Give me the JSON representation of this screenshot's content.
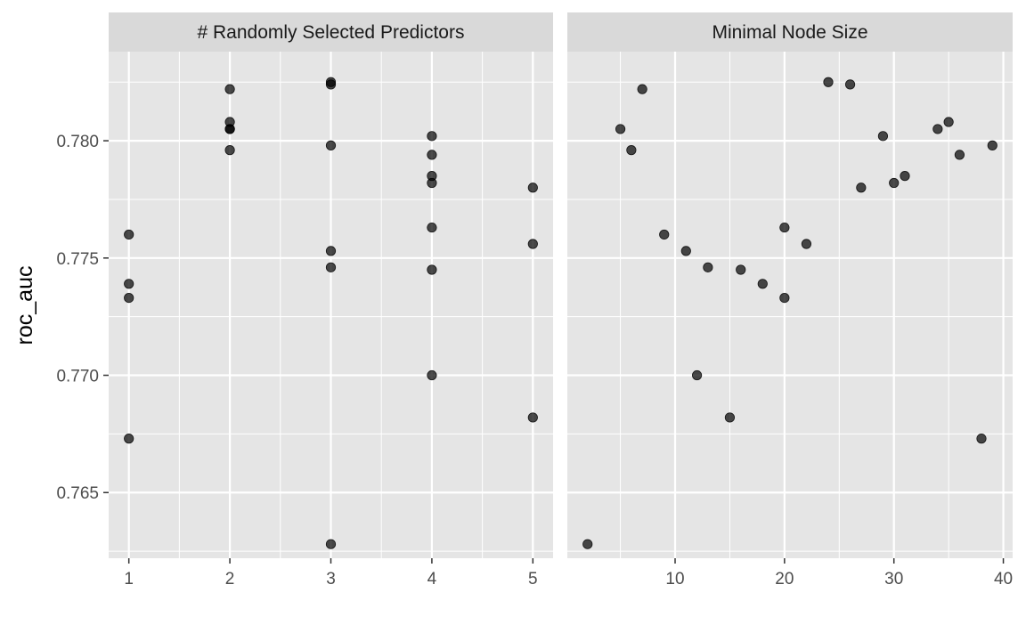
{
  "chart_data": {
    "type": "scatter",
    "ylabel": "roc_auc",
    "xlabel": "",
    "ylim": [
      0.7622,
      0.7838
    ],
    "yticks": [
      0.765,
      0.77,
      0.775,
      0.78
    ],
    "ytick_labels": [
      "0.765",
      "0.770",
      "0.775",
      "0.780"
    ],
    "point_color": "#000000",
    "point_opacity": 0.7,
    "panel_background": "#e5e5e5",
    "strip_background": "#d9d9d9",
    "grid": true,
    "facets": [
      {
        "title": "# Randomly Selected Predictors",
        "xlim": [
          0.8,
          5.2
        ],
        "xticks": [
          1,
          2,
          3,
          4,
          5
        ],
        "xtick_labels": [
          "1",
          "2",
          "3",
          "4",
          "5"
        ],
        "points": [
          {
            "x": 1,
            "y": 0.776
          },
          {
            "x": 1,
            "y": 0.7739
          },
          {
            "x": 1,
            "y": 0.7733
          },
          {
            "x": 1,
            "y": 0.7673
          },
          {
            "x": 2,
            "y": 0.7822
          },
          {
            "x": 2,
            "y": 0.7808
          },
          {
            "x": 2,
            "y": 0.7805
          },
          {
            "x": 2,
            "y": 0.7805
          },
          {
            "x": 2,
            "y": 0.7796
          },
          {
            "x": 3,
            "y": 0.7825
          },
          {
            "x": 3,
            "y": 0.7824
          },
          {
            "x": 3,
            "y": 0.7798
          },
          {
            "x": 3,
            "y": 0.7753
          },
          {
            "x": 3,
            "y": 0.7746
          },
          {
            "x": 3,
            "y": 0.7628
          },
          {
            "x": 4,
            "y": 0.7802
          },
          {
            "x": 4,
            "y": 0.7794
          },
          {
            "x": 4,
            "y": 0.7785
          },
          {
            "x": 4,
            "y": 0.7782
          },
          {
            "x": 4,
            "y": 0.7763
          },
          {
            "x": 4,
            "y": 0.7745
          },
          {
            "x": 4,
            "y": 0.77
          },
          {
            "x": 5,
            "y": 0.778
          },
          {
            "x": 5,
            "y": 0.7756
          },
          {
            "x": 5,
            "y": 0.7682
          }
        ]
      },
      {
        "title": "Minimal Node Size",
        "xlim": [
          0.15,
          40.85
        ],
        "xticks": [
          10,
          20,
          30,
          40
        ],
        "xtick_labels": [
          "10",
          "20",
          "30",
          "40"
        ],
        "points": [
          {
            "x": 2,
            "y": 0.7628
          },
          {
            "x": 5,
            "y": 0.7805
          },
          {
            "x": 6,
            "y": 0.7796
          },
          {
            "x": 7,
            "y": 0.7822
          },
          {
            "x": 9,
            "y": 0.776
          },
          {
            "x": 11,
            "y": 0.7753
          },
          {
            "x": 12,
            "y": 0.77
          },
          {
            "x": 13,
            "y": 0.7746
          },
          {
            "x": 15,
            "y": 0.7682
          },
          {
            "x": 16,
            "y": 0.7745
          },
          {
            "x": 18,
            "y": 0.7739
          },
          {
            "x": 20,
            "y": 0.7763
          },
          {
            "x": 20,
            "y": 0.7733
          },
          {
            "x": 22,
            "y": 0.7756
          },
          {
            "x": 24,
            "y": 0.7825
          },
          {
            "x": 26,
            "y": 0.7824
          },
          {
            "x": 27,
            "y": 0.778
          },
          {
            "x": 29,
            "y": 0.7802
          },
          {
            "x": 30,
            "y": 0.7782
          },
          {
            "x": 31,
            "y": 0.7785
          },
          {
            "x": 34,
            "y": 0.7805
          },
          {
            "x": 35,
            "y": 0.7808
          },
          {
            "x": 36,
            "y": 0.7794
          },
          {
            "x": 38,
            "y": 0.7673
          },
          {
            "x": 39,
            "y": 0.7798
          }
        ]
      }
    ]
  }
}
